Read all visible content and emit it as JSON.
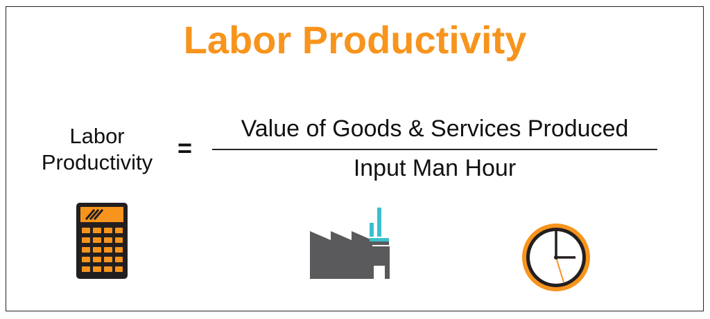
{
  "title": "Labor Productivity",
  "formula": {
    "lhs_line1": "Labor",
    "lhs_line2": "Productivity",
    "equals": "=",
    "numerator": "Value of Goods & Services Produced",
    "denominator": "Input Man Hour"
  },
  "icons": [
    "calculator-icon",
    "factory-icon",
    "clock-icon"
  ],
  "colors": {
    "accent": "#F7941D",
    "dark": "#231F20",
    "factory": "#5A5A5C",
    "chimney": "#3DBFCF"
  }
}
